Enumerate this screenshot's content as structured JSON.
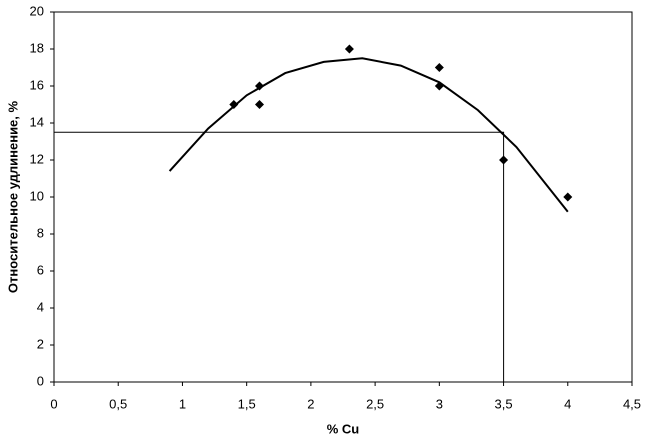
{
  "chart_data": {
    "type": "scatter",
    "x_label": "% Cu",
    "y_label": "Относительное удлинение, %",
    "xlim": [
      0,
      4.5
    ],
    "ylim": [
      0,
      20
    ],
    "xticks": [
      0,
      {
        "value": 0.5,
        "label": "0,5"
      },
      1,
      {
        "value": 1.5,
        "label": "1,5"
      },
      2,
      {
        "value": 2.5,
        "label": "2,5"
      },
      3,
      {
        "value": 3.5,
        "label": "3,5"
      },
      4,
      {
        "value": 4.5,
        "label": "4,5"
      }
    ],
    "yticks": [
      0,
      2,
      4,
      6,
      8,
      10,
      12,
      14,
      16,
      18,
      20
    ],
    "grid": false,
    "color": "#000000",
    "points": {
      "x": [
        1.4,
        1.6,
        1.6,
        2.3,
        3,
        3,
        3.5,
        4
      ],
      "values": [
        15,
        16,
        15,
        18,
        17,
        16,
        12,
        10
      ]
    },
    "fit_curve": {
      "x": [
        0.9,
        1.2,
        1.5,
        1.8,
        2.1,
        2.4,
        2.7,
        3.0,
        3.3,
        3.6,
        4.0
      ],
      "values": [
        11.4,
        13.7,
        15.5,
        16.7,
        17.3,
        17.5,
        17.1,
        16.2,
        14.7,
        12.7,
        9.2
      ]
    },
    "reference": {
      "x": [
        0,
        3.5,
        3.5
      ],
      "values": [
        13.5,
        13.5,
        0
      ]
    }
  }
}
